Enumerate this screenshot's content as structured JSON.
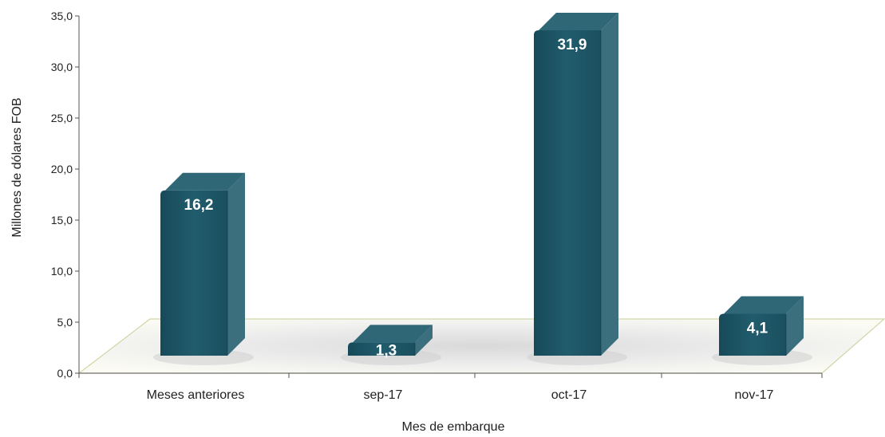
{
  "chart_data": {
    "type": "bar",
    "categories": [
      "Meses anteriores",
      "sep-17",
      "oct-17",
      "nov-17"
    ],
    "values": [
      16.2,
      1.3,
      31.9,
      4.1
    ],
    "value_labels": [
      "16,2",
      "1,3",
      "31,9",
      "4,1"
    ],
    "xlabel": "Mes de embarque",
    "ylabel": "Millones de dólares FOB",
    "ylim": [
      0,
      35
    ],
    "yticks": [
      0,
      5,
      10,
      15,
      20,
      25,
      30,
      35
    ],
    "ytick_labels": [
      "0,0",
      "5,0",
      "10,0",
      "15,0",
      "20,0",
      "25,0",
      "30,0",
      "35,0"
    ],
    "grid": false,
    "legend": "none",
    "style": "3d-column",
    "colors": {
      "bar_front": "#1e5566",
      "bar_side": "#3b6f7e",
      "bar_top": "#2f6777",
      "floor": "#f6f6ec",
      "floor_edge": "#d4d4a8",
      "axis": "#555555"
    }
  }
}
